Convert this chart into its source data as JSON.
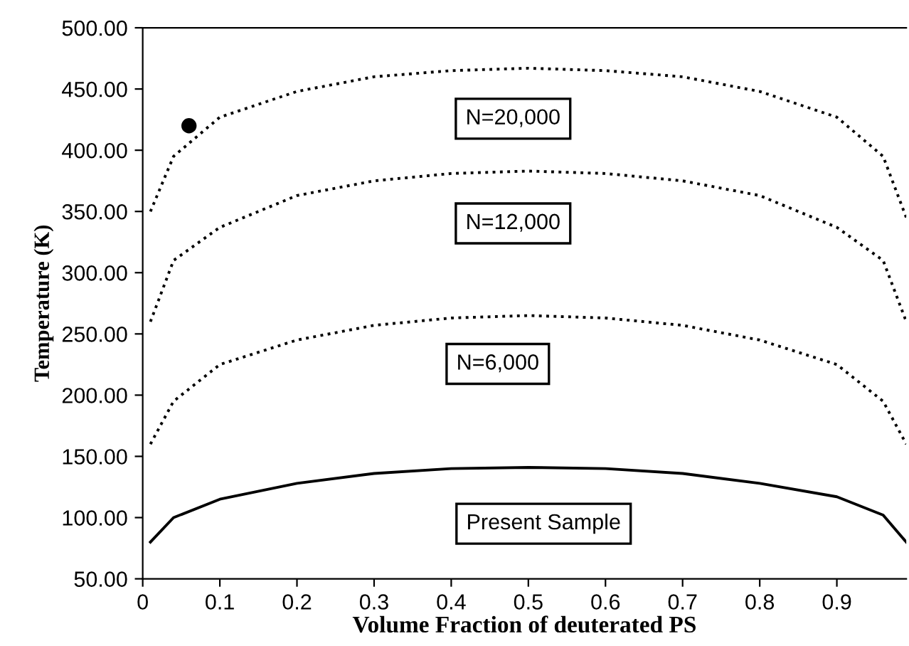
{
  "chart_data": {
    "type": "line",
    "xlabel": "Volume Fraction of deuterated PS",
    "ylabel": "Temperature (K)",
    "x": [
      0.01,
      0.04,
      0.1,
      0.2,
      0.3,
      0.4,
      0.5,
      0.6,
      0.7,
      0.8,
      0.9,
      0.96,
      0.99
    ],
    "series": [
      {
        "color": "#000000",
        "line_style": "dotted",
        "values": [
          350,
          395,
          427,
          448,
          460,
          465,
          467,
          465,
          460,
          448,
          427,
          395,
          345
        ]
      },
      {
        "color": "#000000",
        "line_style": "dotted",
        "values": [
          260,
          310,
          337,
          363,
          375,
          381,
          383,
          381,
          375,
          363,
          337,
          310,
          260
        ]
      },
      {
        "color": "#000000",
        "line_style": "dotted",
        "values": [
          160,
          195,
          225,
          245,
          257,
          263,
          265,
          263,
          257,
          245,
          225,
          195,
          160
        ]
      },
      {
        "color": "#000000",
        "line_style": "solid",
        "values": [
          80,
          100,
          115,
          128,
          136,
          140,
          141,
          140,
          136,
          128,
          117,
          102,
          80
        ]
      },
      {
        "type": "scatter",
        "color": "#000000",
        "marker": "circle",
        "x": [
          0.06
        ],
        "values": [
          420
        ]
      }
    ],
    "annotations": [
      "N=20,000",
      "N=12,000",
      "N=6,000",
      "Present Sample"
    ],
    "xlim": [
      0,
      0.99
    ],
    "xticks": [
      0,
      0.1,
      0.2,
      0.3,
      0.4,
      0.5,
      0.6,
      0.7,
      0.8,
      0.9
    ],
    "ylim": [
      50,
      500
    ],
    "yticks": [
      {
        "value": 50,
        "label": "50.00"
      },
      {
        "value": 100,
        "label": "100.00"
      },
      {
        "value": 150,
        "label": "150.00"
      },
      {
        "value": 200,
        "label": "200.00"
      },
      {
        "value": 250,
        "label": "250.00"
      },
      {
        "value": 300,
        "label": "300.00"
      },
      {
        "value": 350,
        "label": "350.00"
      },
      {
        "value": 400,
        "label": "400.00"
      },
      {
        "value": 450,
        "label": "450.00"
      },
      {
        "value": 500,
        "label": "500.00"
      }
    ],
    "grid": false,
    "legend": false
  }
}
